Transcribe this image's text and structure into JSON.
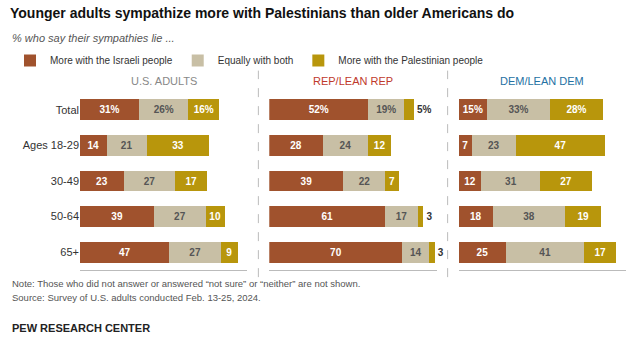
{
  "title": "Younger adults sympathize more with Palestinians than older Americans do",
  "subtitle": "% who say their sympathies lie ...",
  "legend": "top",
  "annotations": [
    "Note: Those who did not answer or answered “not sure” or “neither” are not shown.",
    "Source: Survey of U.S. adults conducted Feb. 13-25, 2024.",
    "PEW RESEARCH CENTER"
  ],
  "chart_data": [
    {
      "type": "bar",
      "orientation": "horizontal",
      "stacked": true,
      "data_labels": true,
      "grid": false,
      "title": "U.S. ADULTS",
      "color": "#888888",
      "tick_labels": "y",
      "categories": [
        "Total",
        "Ages 18-29",
        "30-49",
        "50-64",
        "65+"
      ],
      "xlim": [
        0,
        88
      ],
      "series": [
        {
          "name": "More with the Israeli people",
          "color": "#A0522D",
          "values": [
            31,
            14,
            23,
            39,
            47
          ],
          "value_labels": [
            "31%",
            "14",
            "23",
            "39",
            "47"
          ]
        },
        {
          "name": "Equally with both",
          "color": "#C8BFA5",
          "values": [
            26,
            21,
            27,
            27,
            27
          ],
          "value_labels": [
            "26%",
            "21",
            "27",
            "27",
            "27"
          ]
        },
        {
          "name": "More with the Palestinian people",
          "color": "#B8960C",
          "values": [
            16,
            33,
            17,
            10,
            9
          ],
          "value_labels": [
            "16%",
            "33",
            "17",
            "10",
            "9"
          ]
        }
      ]
    },
    {
      "type": "bar",
      "orientation": "horizontal",
      "stacked": true,
      "data_labels": true,
      "grid": false,
      "title": "REP/LEAN REP",
      "color": "#C0392B",
      "tick_labels": false,
      "categories": [
        "Total",
        "Ages 18-29",
        "30-49",
        "50-64",
        "65+"
      ],
      "xlim": [
        0,
        88
      ],
      "series": [
        {
          "name": "More with the Israeli people",
          "color": "#A0522D",
          "values": [
            52,
            28,
            39,
            61,
            70
          ],
          "value_labels": [
            "52%",
            "28",
            "39",
            "61",
            "70"
          ]
        },
        {
          "name": "Equally with both",
          "color": "#C8BFA5",
          "values": [
            19,
            24,
            22,
            17,
            14
          ],
          "value_labels": [
            "19%",
            "24",
            "22",
            "17",
            "14"
          ]
        },
        {
          "name": "More with the Palestinian people",
          "color": "#B8960C",
          "values": [
            5,
            12,
            7,
            3,
            3
          ],
          "value_labels": [
            "5%",
            "12",
            "7",
            "3",
            "3"
          ]
        }
      ]
    },
    {
      "type": "bar",
      "orientation": "horizontal",
      "stacked": true,
      "data_labels": true,
      "grid": false,
      "title": "DEM/LEAN DEM",
      "color": "#2471A3",
      "tick_labels": false,
      "categories": [
        "Total",
        "Ages 18-29",
        "30-49",
        "50-64",
        "65+"
      ],
      "xlim": [
        0,
        88
      ],
      "series": [
        {
          "name": "More with the Israeli people",
          "color": "#A0522D",
          "values": [
            15,
            7,
            12,
            18,
            25
          ],
          "value_labels": [
            "15%",
            "7",
            "12",
            "18",
            "25"
          ]
        },
        {
          "name": "Equally with both",
          "color": "#C8BFA5",
          "values": [
            33,
            23,
            31,
            38,
            41
          ],
          "value_labels": [
            "33%",
            "23",
            "31",
            "38",
            "41"
          ]
        },
        {
          "name": "More with the Palestinian people",
          "color": "#B8960C",
          "values": [
            28,
            47,
            27,
            19,
            17
          ],
          "value_labels": [
            "28%",
            "47",
            "27",
            "19",
            "17"
          ]
        }
      ]
    }
  ]
}
